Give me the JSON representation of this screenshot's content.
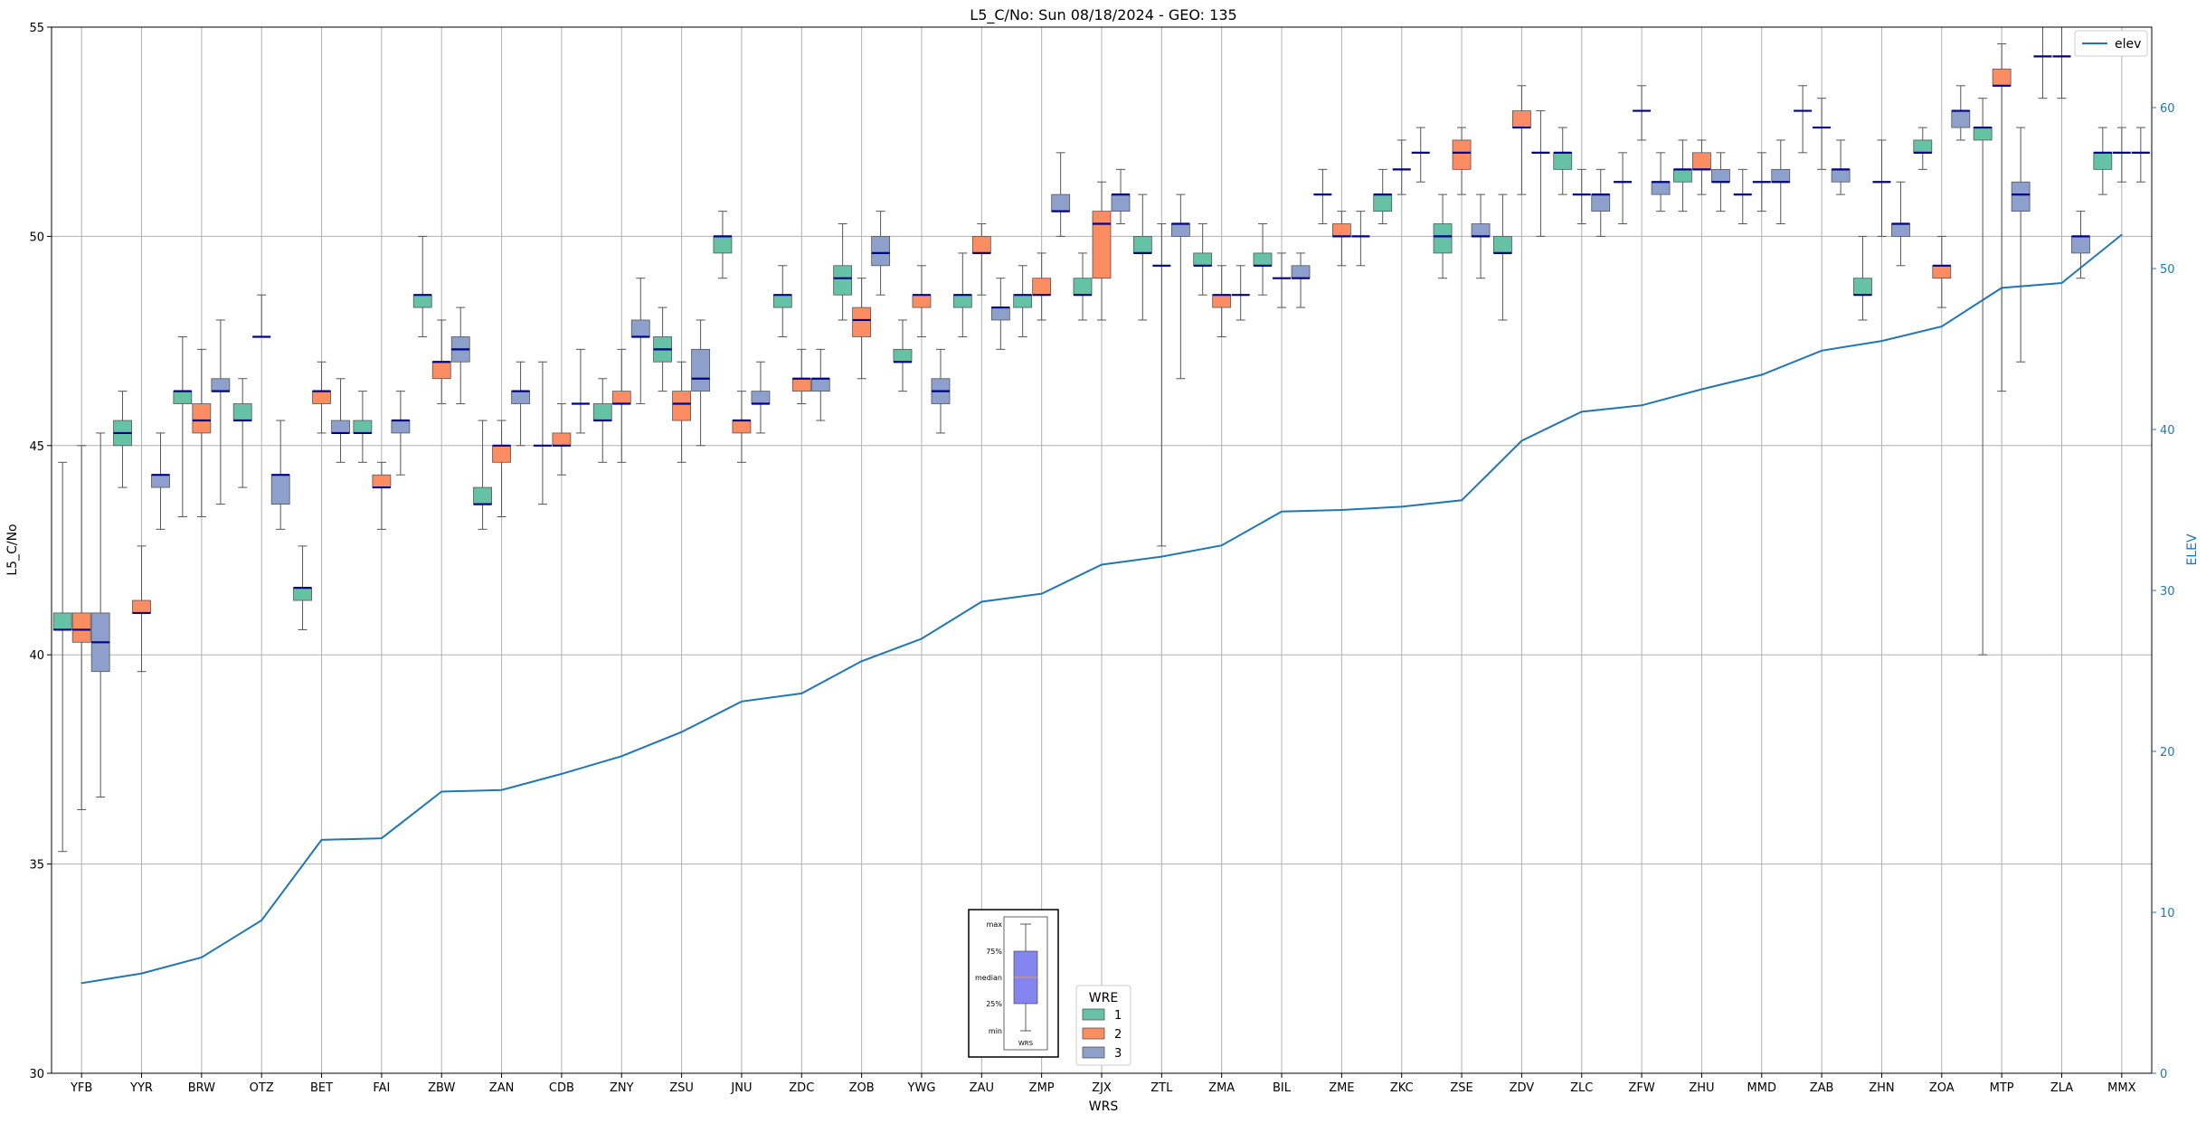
{
  "chart_data": {
    "type": "box",
    "title": "L5_C/No: Sun 08/18/2024 - GEO: 135",
    "xlabel": "WRS",
    "ylabel": "L5_C/No",
    "y2label": "ELEV",
    "ylim": [
      30,
      55
    ],
    "y2lim": [
      0,
      65
    ],
    "yticks": [
      30,
      35,
      40,
      45,
      50,
      55
    ],
    "y2ticks": [
      0,
      10,
      20,
      30,
      40,
      50,
      60
    ],
    "grid": true,
    "categories": [
      "YFB",
      "YYR",
      "BRW",
      "OTZ",
      "BET",
      "FAI",
      "ZBW",
      "ZAN",
      "CDB",
      "ZNY",
      "ZSU",
      "JNU",
      "ZDC",
      "ZOB",
      "YWG",
      "ZAU",
      "ZMP",
      "ZJX",
      "ZTL",
      "ZMA",
      "BIL",
      "ZME",
      "ZKC",
      "ZSE",
      "ZDV",
      "ZLC",
      "ZFW",
      "ZHU",
      "MMD",
      "ZAB",
      "ZHN",
      "ZOA",
      "MTP",
      "ZLA",
      "MMX"
    ],
    "wre_colors": {
      "1": "#66c2a5",
      "2": "#fc8d62",
      "3": "#8da0cb"
    },
    "median_color": "#00008b",
    "elev_color": "#1f77b4",
    "boxes": [
      {
        "site": "YFB",
        "wre": 1,
        "min": 35.3,
        "q1": 40.6,
        "median": 40.6,
        "q3": 41.0,
        "max": 44.6
      },
      {
        "site": "YFB",
        "wre": 2,
        "min": 36.3,
        "q1": 40.3,
        "median": 40.6,
        "q3": 41.0,
        "max": 45.0
      },
      {
        "site": "YFB",
        "wre": 3,
        "min": 36.6,
        "q1": 39.6,
        "median": 40.3,
        "q3": 41.0,
        "max": 45.3
      },
      {
        "site": "YYR",
        "wre": 1,
        "min": 44.0,
        "q1": 45.0,
        "median": 45.3,
        "q3": 45.6,
        "max": 46.3
      },
      {
        "site": "YYR",
        "wre": 2,
        "min": 39.6,
        "q1": 41.0,
        "median": 41.0,
        "q3": 41.3,
        "max": 42.6
      },
      {
        "site": "YYR",
        "wre": 3,
        "min": 43.0,
        "q1": 44.0,
        "median": 44.3,
        "q3": 44.3,
        "max": 45.3
      },
      {
        "site": "BRW",
        "wre": 1,
        "min": 43.3,
        "q1": 46.0,
        "median": 46.3,
        "q3": 46.3,
        "max": 47.6
      },
      {
        "site": "BRW",
        "wre": 2,
        "min": 43.3,
        "q1": 45.3,
        "median": 45.6,
        "q3": 46.0,
        "max": 47.3
      },
      {
        "site": "BRW",
        "wre": 3,
        "min": 43.6,
        "q1": 46.3,
        "median": 46.3,
        "q3": 46.6,
        "max": 48.0
      },
      {
        "site": "OTZ",
        "wre": 1,
        "min": 44.0,
        "q1": 45.6,
        "median": 45.6,
        "q3": 46.0,
        "max": 46.6
      },
      {
        "site": "OTZ",
        "wre": 2,
        "min": 47.6,
        "q1": 47.6,
        "median": 47.6,
        "q3": 47.6,
        "max": 48.6
      },
      {
        "site": "OTZ",
        "wre": 3,
        "min": 43.0,
        "q1": 43.6,
        "median": 44.3,
        "q3": 44.3,
        "max": 45.6
      },
      {
        "site": "BET",
        "wre": 1,
        "min": 40.6,
        "q1": 41.3,
        "median": 41.6,
        "q3": 41.6,
        "max": 42.6
      },
      {
        "site": "BET",
        "wre": 2,
        "min": 45.3,
        "q1": 46.0,
        "median": 46.3,
        "q3": 46.3,
        "max": 47.0
      },
      {
        "site": "BET",
        "wre": 3,
        "min": 44.6,
        "q1": 45.3,
        "median": 45.3,
        "q3": 45.6,
        "max": 46.6
      },
      {
        "site": "FAI",
        "wre": 1,
        "min": 44.6,
        "q1": 45.3,
        "median": 45.3,
        "q3": 45.6,
        "max": 46.3
      },
      {
        "site": "FAI",
        "wre": 2,
        "min": 43.0,
        "q1": 44.0,
        "median": 44.0,
        "q3": 44.3,
        "max": 44.6
      },
      {
        "site": "FAI",
        "wre": 3,
        "min": 44.3,
        "q1": 45.3,
        "median": 45.6,
        "q3": 45.6,
        "max": 46.3
      },
      {
        "site": "ZBW",
        "wre": 1,
        "min": 47.6,
        "q1": 48.3,
        "median": 48.6,
        "q3": 48.6,
        "max": 50.0
      },
      {
        "site": "ZBW",
        "wre": 2,
        "min": 46.0,
        "q1": 46.6,
        "median": 47.0,
        "q3": 47.0,
        "max": 48.0
      },
      {
        "site": "ZBW",
        "wre": 3,
        "min": 46.0,
        "q1": 47.0,
        "median": 47.3,
        "q3": 47.6,
        "max": 48.3
      },
      {
        "site": "ZAN",
        "wre": 1,
        "min": 43.0,
        "q1": 43.6,
        "median": 43.6,
        "q3": 44.0,
        "max": 45.6
      },
      {
        "site": "ZAN",
        "wre": 2,
        "min": 43.3,
        "q1": 44.6,
        "median": 45.0,
        "q3": 45.0,
        "max": 45.6
      },
      {
        "site": "ZAN",
        "wre": 3,
        "min": 45.0,
        "q1": 46.0,
        "median": 46.3,
        "q3": 46.3,
        "max": 47.0
      },
      {
        "site": "CDB",
        "wre": 1,
        "min": 43.6,
        "q1": 45.0,
        "median": 45.0,
        "q3": 45.0,
        "max": 47.0
      },
      {
        "site": "CDB",
        "wre": 2,
        "min": 44.3,
        "q1": 45.0,
        "median": 45.0,
        "q3": 45.3,
        "max": 46.0
      },
      {
        "site": "CDB",
        "wre": 3,
        "min": 45.3,
        "q1": 46.0,
        "median": 46.0,
        "q3": 46.0,
        "max": 47.3
      },
      {
        "site": "ZNY",
        "wre": 1,
        "min": 44.6,
        "q1": 45.6,
        "median": 45.6,
        "q3": 46.0,
        "max": 46.6
      },
      {
        "site": "ZNY",
        "wre": 2,
        "min": 44.6,
        "q1": 46.0,
        "median": 46.0,
        "q3": 46.3,
        "max": 47.3
      },
      {
        "site": "ZNY",
        "wre": 3,
        "min": 46.0,
        "q1": 47.6,
        "median": 47.6,
        "q3": 48.0,
        "max": 49.0
      },
      {
        "site": "ZSU",
        "wre": 1,
        "min": 46.3,
        "q1": 47.0,
        "median": 47.3,
        "q3": 47.6,
        "max": 48.3
      },
      {
        "site": "ZSU",
        "wre": 2,
        "min": 44.6,
        "q1": 45.6,
        "median": 46.0,
        "q3": 46.3,
        "max": 47.0
      },
      {
        "site": "ZSU",
        "wre": 3,
        "min": 45.0,
        "q1": 46.3,
        "median": 46.6,
        "q3": 47.3,
        "max": 48.0
      },
      {
        "site": "JNU",
        "wre": 1,
        "min": 49.0,
        "q1": 49.6,
        "median": 50.0,
        "q3": 50.0,
        "max": 50.6
      },
      {
        "site": "JNU",
        "wre": 2,
        "min": 44.6,
        "q1": 45.3,
        "median": 45.6,
        "q3": 45.6,
        "max": 46.3
      },
      {
        "site": "JNU",
        "wre": 3,
        "min": 45.3,
        "q1": 46.0,
        "median": 46.0,
        "q3": 46.3,
        "max": 47.0
      },
      {
        "site": "ZDC",
        "wre": 1,
        "min": 47.6,
        "q1": 48.3,
        "median": 48.6,
        "q3": 48.6,
        "max": 49.3
      },
      {
        "site": "ZDC",
        "wre": 2,
        "min": 46.0,
        "q1": 46.3,
        "median": 46.6,
        "q3": 46.6,
        "max": 47.3
      },
      {
        "site": "ZDC",
        "wre": 3,
        "min": 45.6,
        "q1": 46.3,
        "median": 46.6,
        "q3": 46.6,
        "max": 47.3
      },
      {
        "site": "ZOB",
        "wre": 1,
        "min": 48.0,
        "q1": 48.6,
        "median": 49.0,
        "q3": 49.3,
        "max": 50.3
      },
      {
        "site": "ZOB",
        "wre": 2,
        "min": 46.6,
        "q1": 47.6,
        "median": 48.0,
        "q3": 48.3,
        "max": 49.0
      },
      {
        "site": "ZOB",
        "wre": 3,
        "min": 48.6,
        "q1": 49.3,
        "median": 49.6,
        "q3": 50.0,
        "max": 50.6
      },
      {
        "site": "YWG",
        "wre": 1,
        "min": 46.3,
        "q1": 47.0,
        "median": 47.0,
        "q3": 47.3,
        "max": 48.0
      },
      {
        "site": "YWG",
        "wre": 2,
        "min": 47.6,
        "q1": 48.3,
        "median": 48.6,
        "q3": 48.6,
        "max": 49.3
      },
      {
        "site": "YWG",
        "wre": 3,
        "min": 45.3,
        "q1": 46.0,
        "median": 46.3,
        "q3": 46.6,
        "max": 47.3
      },
      {
        "site": "ZAU",
        "wre": 1,
        "min": 47.6,
        "q1": 48.3,
        "median": 48.6,
        "q3": 48.6,
        "max": 49.6
      },
      {
        "site": "ZAU",
        "wre": 2,
        "min": 48.6,
        "q1": 49.6,
        "median": 49.6,
        "q3": 50.0,
        "max": 50.3
      },
      {
        "site": "ZAU",
        "wre": 3,
        "min": 47.3,
        "q1": 48.0,
        "median": 48.3,
        "q3": 48.3,
        "max": 49.0
      },
      {
        "site": "ZMP",
        "wre": 1,
        "min": 47.6,
        "q1": 48.3,
        "median": 48.6,
        "q3": 48.6,
        "max": 49.3
      },
      {
        "site": "ZMP",
        "wre": 2,
        "min": 48.0,
        "q1": 48.6,
        "median": 48.6,
        "q3": 49.0,
        "max": 49.6
      },
      {
        "site": "ZMP",
        "wre": 3,
        "min": 50.0,
        "q1": 50.6,
        "median": 50.6,
        "q3": 51.0,
        "max": 52.0
      },
      {
        "site": "ZJX",
        "wre": 1,
        "min": 48.0,
        "q1": 48.6,
        "median": 48.6,
        "q3": 49.0,
        "max": 49.6
      },
      {
        "site": "ZJX",
        "wre": 2,
        "min": 48.0,
        "q1": 49.0,
        "median": 50.3,
        "q3": 50.6,
        "max": 51.3
      },
      {
        "site": "ZJX",
        "wre": 3,
        "min": 50.3,
        "q1": 50.6,
        "median": 51.0,
        "q3": 51.0,
        "max": 51.6
      },
      {
        "site": "ZTL",
        "wre": 1,
        "min": 48.0,
        "q1": 49.6,
        "median": 49.6,
        "q3": 50.0,
        "max": 51.0
      },
      {
        "site": "ZTL",
        "wre": 2,
        "min": 42.6,
        "q1": 49.3,
        "median": 49.3,
        "q3": 49.3,
        "max": 50.3
      },
      {
        "site": "ZTL",
        "wre": 3,
        "min": 46.6,
        "q1": 50.0,
        "median": 50.3,
        "q3": 50.3,
        "max": 51.0
      },
      {
        "site": "ZMA",
        "wre": 1,
        "min": 48.6,
        "q1": 49.3,
        "median": 49.3,
        "q3": 49.6,
        "max": 50.3
      },
      {
        "site": "ZMA",
        "wre": 2,
        "min": 47.6,
        "q1": 48.3,
        "median": 48.6,
        "q3": 48.6,
        "max": 49.3
      },
      {
        "site": "ZMA",
        "wre": 3,
        "min": 48.0,
        "q1": 48.6,
        "median": 48.6,
        "q3": 48.6,
        "max": 49.3
      },
      {
        "site": "BIL",
        "wre": 1,
        "min": 48.6,
        "q1": 49.3,
        "median": 49.3,
        "q3": 49.6,
        "max": 50.3
      },
      {
        "site": "BIL",
        "wre": 2,
        "min": 48.3,
        "q1": 49.0,
        "median": 49.0,
        "q3": 49.0,
        "max": 49.6
      },
      {
        "site": "BIL",
        "wre": 3,
        "min": 48.3,
        "q1": 49.0,
        "median": 49.0,
        "q3": 49.3,
        "max": 49.6
      },
      {
        "site": "ZME",
        "wre": 1,
        "min": 50.3,
        "q1": 51.0,
        "median": 51.0,
        "q3": 51.0,
        "max": 51.6
      },
      {
        "site": "ZME",
        "wre": 2,
        "min": 49.3,
        "q1": 50.0,
        "median": 50.0,
        "q3": 50.3,
        "max": 50.6
      },
      {
        "site": "ZME",
        "wre": 3,
        "min": 49.3,
        "q1": 50.0,
        "median": 50.0,
        "q3": 50.0,
        "max": 50.6
      },
      {
        "site": "ZKC",
        "wre": 1,
        "min": 50.3,
        "q1": 50.6,
        "median": 51.0,
        "q3": 51.0,
        "max": 51.6
      },
      {
        "site": "ZKC",
        "wre": 2,
        "min": 51.0,
        "q1": 51.6,
        "median": 51.6,
        "q3": 51.6,
        "max": 52.3
      },
      {
        "site": "ZKC",
        "wre": 3,
        "min": 51.3,
        "q1": 52.0,
        "median": 52.0,
        "q3": 52.0,
        "max": 52.6
      },
      {
        "site": "ZSE",
        "wre": 1,
        "min": 49.0,
        "q1": 49.6,
        "median": 50.0,
        "q3": 50.3,
        "max": 51.0
      },
      {
        "site": "ZSE",
        "wre": 2,
        "min": 51.0,
        "q1": 51.6,
        "median": 52.0,
        "q3": 52.3,
        "max": 52.6
      },
      {
        "site": "ZSE",
        "wre": 3,
        "min": 49.0,
        "q1": 50.0,
        "median": 50.0,
        "q3": 50.3,
        "max": 51.0
      },
      {
        "site": "ZDV",
        "wre": 1,
        "min": 48.0,
        "q1": 49.6,
        "median": 49.6,
        "q3": 50.0,
        "max": 51.0
      },
      {
        "site": "ZDV",
        "wre": 2,
        "min": 51.0,
        "q1": 52.6,
        "median": 52.6,
        "q3": 53.0,
        "max": 53.6
      },
      {
        "site": "ZDV",
        "wre": 3,
        "min": 50.0,
        "q1": 52.0,
        "median": 52.0,
        "q3": 52.0,
        "max": 53.0
      },
      {
        "site": "ZLC",
        "wre": 1,
        "min": 51.0,
        "q1": 51.6,
        "median": 52.0,
        "q3": 52.0,
        "max": 52.6
      },
      {
        "site": "ZLC",
        "wre": 2,
        "min": 50.3,
        "q1": 51.0,
        "median": 51.0,
        "q3": 51.0,
        "max": 51.6
      },
      {
        "site": "ZLC",
        "wre": 3,
        "min": 50.0,
        "q1": 50.6,
        "median": 51.0,
        "q3": 51.0,
        "max": 51.6
      },
      {
        "site": "ZFW",
        "wre": 1,
        "min": 50.3,
        "q1": 51.3,
        "median": 51.3,
        "q3": 51.3,
        "max": 52.0
      },
      {
        "site": "ZFW",
        "wre": 2,
        "min": 52.3,
        "q1": 53.0,
        "median": 53.0,
        "q3": 53.0,
        "max": 53.6
      },
      {
        "site": "ZFW",
        "wre": 3,
        "min": 50.6,
        "q1": 51.0,
        "median": 51.3,
        "q3": 51.3,
        "max": 52.0
      },
      {
        "site": "ZHU",
        "wre": 1,
        "min": 50.6,
        "q1": 51.3,
        "median": 51.6,
        "q3": 51.6,
        "max": 52.3
      },
      {
        "site": "ZHU",
        "wre": 2,
        "min": 51.0,
        "q1": 51.6,
        "median": 51.6,
        "q3": 52.0,
        "max": 52.3
      },
      {
        "site": "ZHU",
        "wre": 3,
        "min": 50.6,
        "q1": 51.3,
        "median": 51.3,
        "q3": 51.6,
        "max": 52.0
      },
      {
        "site": "MMD",
        "wre": 1,
        "min": 50.3,
        "q1": 51.0,
        "median": 51.0,
        "q3": 51.0,
        "max": 51.6
      },
      {
        "site": "MMD",
        "wre": 2,
        "min": 50.6,
        "q1": 51.3,
        "median": 51.3,
        "q3": 51.3,
        "max": 52.0
      },
      {
        "site": "MMD",
        "wre": 3,
        "min": 50.3,
        "q1": 51.3,
        "median": 51.3,
        "q3": 51.6,
        "max": 52.3
      },
      {
        "site": "ZAB",
        "wre": 1,
        "min": 52.0,
        "q1": 53.0,
        "median": 53.0,
        "q3": 53.0,
        "max": 53.6
      },
      {
        "site": "ZAB",
        "wre": 2,
        "min": 51.6,
        "q1": 52.6,
        "median": 52.6,
        "q3": 52.6,
        "max": 53.3
      },
      {
        "site": "ZAB",
        "wre": 3,
        "min": 51.0,
        "q1": 51.3,
        "median": 51.6,
        "q3": 51.6,
        "max": 52.3
      },
      {
        "site": "ZHN",
        "wre": 1,
        "min": 48.0,
        "q1": 48.6,
        "median": 48.6,
        "q3": 49.0,
        "max": 50.0
      },
      {
        "site": "ZHN",
        "wre": 2,
        "min": 50.0,
        "q1": 51.3,
        "median": 51.3,
        "q3": 51.3,
        "max": 52.3
      },
      {
        "site": "ZHN",
        "wre": 3,
        "min": 49.3,
        "q1": 50.0,
        "median": 50.3,
        "q3": 50.3,
        "max": 51.3
      },
      {
        "site": "ZOA",
        "wre": 1,
        "min": 51.6,
        "q1": 52.0,
        "median": 52.0,
        "q3": 52.3,
        "max": 52.6
      },
      {
        "site": "ZOA",
        "wre": 2,
        "min": 48.3,
        "q1": 49.0,
        "median": 49.3,
        "q3": 49.3,
        "max": 50.0
      },
      {
        "site": "ZOA",
        "wre": 3,
        "min": 52.3,
        "q1": 52.6,
        "median": 53.0,
        "q3": 53.0,
        "max": 53.6
      },
      {
        "site": "MTP",
        "wre": 1,
        "min": 40.0,
        "q1": 52.3,
        "median": 52.6,
        "q3": 52.6,
        "max": 53.3
      },
      {
        "site": "MTP",
        "wre": 2,
        "min": 46.3,
        "q1": 53.6,
        "median": 53.6,
        "q3": 54.0,
        "max": 54.6
      },
      {
        "site": "MTP",
        "wre": 3,
        "min": 47.0,
        "q1": 50.6,
        "median": 51.0,
        "q3": 51.3,
        "max": 52.6
      },
      {
        "site": "ZLA",
        "wre": 1,
        "min": 53.3,
        "q1": 54.3,
        "median": 54.3,
        "q3": 54.3,
        "max": 55.0
      },
      {
        "site": "ZLA",
        "wre": 2,
        "min": 53.3,
        "q1": 54.3,
        "median": 54.3,
        "q3": 54.3,
        "max": 55.0
      },
      {
        "site": "ZLA",
        "wre": 3,
        "min": 49.0,
        "q1": 49.6,
        "median": 50.0,
        "q3": 50.0,
        "max": 50.6
      },
      {
        "site": "MMX",
        "wre": 1,
        "min": 51.0,
        "q1": 51.6,
        "median": 52.0,
        "q3": 52.0,
        "max": 52.6
      },
      {
        "site": "MMX",
        "wre": 2,
        "min": 51.3,
        "q1": 52.0,
        "median": 52.0,
        "q3": 52.0,
        "max": 52.6
      },
      {
        "site": "MMX",
        "wre": 3,
        "min": 51.3,
        "q1": 52.0,
        "median": 52.0,
        "q3": 52.0,
        "max": 52.6
      }
    ],
    "elev": {
      "name": "elev",
      "values": [
        5.6,
        6.2,
        7.2,
        9.5,
        14.5,
        14.6,
        17.5,
        17.6,
        18.6,
        19.7,
        21.2,
        23.1,
        23.6,
        25.6,
        27.0,
        29.3,
        29.8,
        31.6,
        32.1,
        32.8,
        34.9,
        35.0,
        35.2,
        35.6,
        39.3,
        41.1,
        41.5,
        42.5,
        43.4,
        44.9,
        45.5,
        46.4,
        48.8,
        49.1,
        52.1
      ]
    },
    "legends": {
      "series_legend": [
        "elev"
      ],
      "wre_legend_title": "WRE",
      "wre_legend_items": [
        "1",
        "2",
        "3"
      ],
      "series_legend_position": "upper-right",
      "wre_legend_position": "lower-center"
    },
    "box_key": {
      "labels": [
        "max",
        "75%",
        "median",
        "25%",
        "min"
      ],
      "xlabel": "WRS"
    }
  }
}
